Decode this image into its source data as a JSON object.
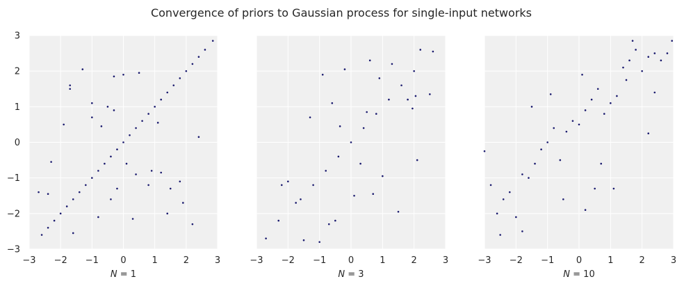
{
  "figure": {
    "title": "Convergence of priors to Gaussian process for single-input networks",
    "background": "#ffffff",
    "panel_background": "#f0f0f0",
    "grid_color": "#ffffff",
    "marker_color": "#1a1a6e"
  },
  "chart_data": [
    {
      "type": "scatter",
      "title": "",
      "xlabel": "N = 1",
      "xlabel_prefix": "N",
      "xlabel_suffix": " = 1",
      "ylabel": "",
      "xlim": [
        -3,
        3
      ],
      "ylim": [
        -3,
        3
      ],
      "xticks": [
        "−3",
        "−2",
        "−1",
        "0",
        "1",
        "2",
        "3"
      ],
      "yticks": [
        "−3",
        "−2",
        "−1",
        "0",
        "1",
        "2",
        "3"
      ],
      "grid": true,
      "series": [
        {
          "x": [
            -2.6,
            -2.4,
            -2.2,
            -2.0,
            -1.8,
            -1.6,
            -1.4,
            -1.2,
            -1.0,
            -0.8,
            -0.6,
            -0.4,
            -0.2,
            0.0,
            0.2,
            0.4,
            0.6,
            0.8,
            1.0,
            1.2,
            1.4,
            1.6,
            1.8,
            2.0,
            2.2,
            2.4,
            2.6,
            2.85,
            -1.7,
            -1.3,
            -0.3,
            0.0,
            0.5,
            -0.5,
            1.1,
            -1.0,
            0.9,
            -0.2,
            2.4,
            2.2,
            1.9,
            1.8,
            1.5,
            -2.7,
            -2.4,
            -2.3,
            -1.9,
            -1.7,
            -1.0,
            -0.7,
            -0.3,
            0.1,
            0.4,
            0.8,
            1.2,
            -1.6,
            -0.8,
            0.3,
            1.4,
            -0.4
          ],
          "y": [
            -2.6,
            -2.4,
            -2.2,
            -2.0,
            -1.8,
            -1.6,
            -1.4,
            -1.2,
            -1.0,
            -0.8,
            -0.6,
            -0.4,
            -0.2,
            0.0,
            0.2,
            0.4,
            0.6,
            0.8,
            1.0,
            1.2,
            1.4,
            1.6,
            1.8,
            2.0,
            2.2,
            2.4,
            2.6,
            2.85,
            1.6,
            2.05,
            1.85,
            1.9,
            1.95,
            1.0,
            0.55,
            0.7,
            -0.8,
            -1.3,
            0.15,
            -2.3,
            -1.7,
            -1.1,
            -1.3,
            -1.4,
            -1.45,
            -0.55,
            0.5,
            1.5,
            1.1,
            0.45,
            0.9,
            -0.6,
            -0.9,
            -1.2,
            -0.85,
            -2.55,
            -2.1,
            -2.15,
            -2.0,
            -1.6
          ]
        }
      ]
    },
    {
      "type": "scatter",
      "title": "",
      "xlabel": "N = 3",
      "xlabel_prefix": "N",
      "xlabel_suffix": " = 3",
      "ylabel": "",
      "xlim": [
        -3,
        3
      ],
      "ylim": [
        -3,
        3
      ],
      "xticks": [
        "−3",
        "−2",
        "−1",
        "0",
        "1",
        "2",
        "3"
      ],
      "yticks": [],
      "grid": true,
      "series": [
        {
          "x": [
            -1.6,
            -1.2,
            -0.8,
            -0.4,
            0.0,
            0.4,
            0.8,
            1.2,
            1.6,
            2.0,
            -0.9,
            -0.2,
            0.6,
            1.3,
            2.2,
            2.6,
            -2.7,
            -2.3,
            -2.0,
            -1.5,
            -1.0,
            -0.7,
            -0.5,
            0.1,
            0.3,
            0.7,
            1.0,
            1.5,
            2.1,
            2.5,
            -1.3,
            -0.6,
            0.9,
            1.8,
            -2.2,
            -0.35,
            0.5,
            1.95,
            -1.75,
            2.05
          ],
          "y": [
            -1.6,
            -1.2,
            -0.8,
            -0.4,
            0.0,
            0.4,
            0.8,
            1.2,
            1.6,
            2.0,
            1.9,
            2.05,
            2.3,
            2.2,
            2.6,
            2.55,
            -2.7,
            -2.2,
            -1.1,
            -2.75,
            -2.8,
            -2.3,
            -2.2,
            -1.5,
            -0.6,
            -1.45,
            -0.95,
            -1.95,
            -0.5,
            1.35,
            0.7,
            1.1,
            1.8,
            1.2,
            -1.2,
            0.45,
            0.85,
            0.95,
            -1.7,
            1.3
          ]
        }
      ]
    },
    {
      "type": "scatter",
      "title": "",
      "xlabel": "N = 10",
      "xlabel_prefix": "N",
      "xlabel_suffix": " = 10",
      "ylabel": "",
      "xlim": [
        -3,
        3
      ],
      "ylim": [
        -3,
        3
      ],
      "xticks": [
        "−3",
        "−2",
        "−1",
        "0",
        "1",
        "2",
        "3"
      ],
      "yticks": [],
      "grid": true,
      "series": [
        {
          "x": [
            -3.0,
            -2.8,
            -2.6,
            -2.4,
            -2.2,
            -2.0,
            -1.8,
            -1.6,
            -1.4,
            -1.2,
            -1.0,
            -0.8,
            -0.6,
            -0.4,
            -0.2,
            0.0,
            0.2,
            0.4,
            0.6,
            0.8,
            1.0,
            1.2,
            1.4,
            1.6,
            1.8,
            2.0,
            2.2,
            2.4,
            2.6,
            2.8,
            2.95,
            -1.5,
            -0.9,
            0.1,
            0.7,
            1.1,
            -2.5,
            -1.8,
            0.2,
            1.5,
            2.2,
            -0.5,
            0.5,
            2.4,
            1.7
          ],
          "y": [
            -0.25,
            -1.2,
            -2.0,
            -1.6,
            -1.4,
            -2.1,
            -0.9,
            -1.0,
            -0.6,
            -0.2,
            0.0,
            0.4,
            -0.5,
            0.3,
            0.6,
            0.5,
            0.9,
            1.2,
            1.5,
            0.8,
            1.1,
            1.3,
            2.1,
            2.3,
            2.6,
            2.0,
            2.4,
            2.5,
            2.3,
            2.5,
            2.85,
            1.0,
            1.35,
            1.9,
            -0.6,
            -1.3,
            -2.6,
            -2.5,
            -1.9,
            1.75,
            0.25,
            -1.6,
            -1.3,
            1.4,
            2.85
          ]
        }
      ]
    }
  ]
}
